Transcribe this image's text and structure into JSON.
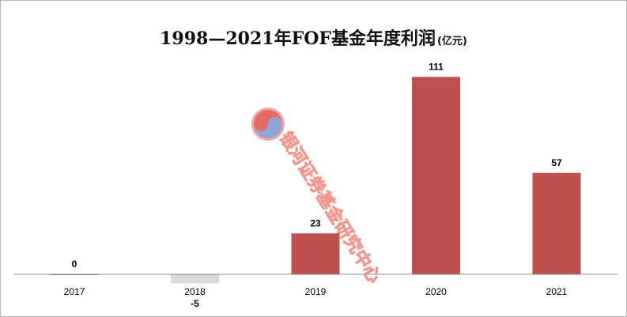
{
  "title": "1998—2021年FOF基金年度利润",
  "title_unit": "(亿元)",
  "watermark_text": "银河证券基金研究中心",
  "colors": {
    "bar_positive": "#c0504d",
    "bar_negative": "#d9d9d9",
    "axis": "#888888",
    "watermark": "#f08c83"
  },
  "chart_data": {
    "type": "bar",
    "title": "1998—2021年FOF基金年度利润(亿元)",
    "xlabel": "",
    "ylabel": "",
    "categories": [
      "2017",
      "2018",
      "2019",
      "2020",
      "2021"
    ],
    "values": [
      0,
      -5,
      23,
      111,
      57
    ],
    "data_labels": [
      "0",
      "-5",
      "23",
      "111",
      "57"
    ],
    "ylim": [
      -5,
      111
    ],
    "grid": false,
    "legend": "none"
  }
}
